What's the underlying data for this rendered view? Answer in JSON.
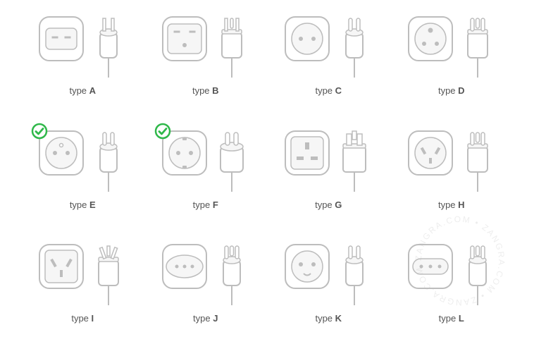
{
  "layout": {
    "cols": 4,
    "rows": 3,
    "cell_gap": 20,
    "padding": "20px 40px"
  },
  "colors": {
    "stroke": "#bdbdbd",
    "fill": "#ffffff",
    "innerFill": "#f6f6f6",
    "label": "#555555",
    "checkGreen": "#2fb84a",
    "checkBg": "#ffffff",
    "watermark": "#cccccc",
    "background": "#ffffff"
  },
  "typography": {
    "label_fontsize": 13,
    "label_prefix": "type ",
    "font_family": "Arial, Helvetica, sans-serif"
  },
  "watermark": {
    "text": "ZANGRA.COM • ZANGRA.COM • ",
    "radius": 60
  },
  "plugs": [
    {
      "id": "A",
      "label": "A",
      "checked": false,
      "socket": "slots2h",
      "plug": "flat2"
    },
    {
      "id": "B",
      "label": "B",
      "checked": false,
      "socket": "slots2h1r",
      "plug": "flat2r"
    },
    {
      "id": "C",
      "label": "C",
      "checked": false,
      "socket": "round2",
      "plug": "round2"
    },
    {
      "id": "D",
      "label": "D",
      "checked": false,
      "socket": "round3tri",
      "plug": "round3"
    },
    {
      "id": "E",
      "label": "E",
      "checked": true,
      "socket": "round2pin",
      "plug": "round2g"
    },
    {
      "id": "F",
      "label": "F",
      "checked": true,
      "socket": "schuko",
      "plug": "schuko"
    },
    {
      "id": "G",
      "label": "G",
      "checked": false,
      "socket": "uk",
      "plug": "uk"
    },
    {
      "id": "H",
      "label": "H",
      "checked": false,
      "socket": "israel",
      "plug": "round3"
    },
    {
      "id": "I",
      "label": "I",
      "checked": false,
      "socket": "aus",
      "plug": "flat3a"
    },
    {
      "id": "J",
      "label": "J",
      "checked": false,
      "socket": "swiss",
      "plug": "round3s"
    },
    {
      "id": "K",
      "label": "K",
      "checked": false,
      "socket": "round2u",
      "plug": "round2g"
    },
    {
      "id": "L",
      "label": "L",
      "checked": false,
      "socket": "italy",
      "plug": "round3l"
    }
  ]
}
